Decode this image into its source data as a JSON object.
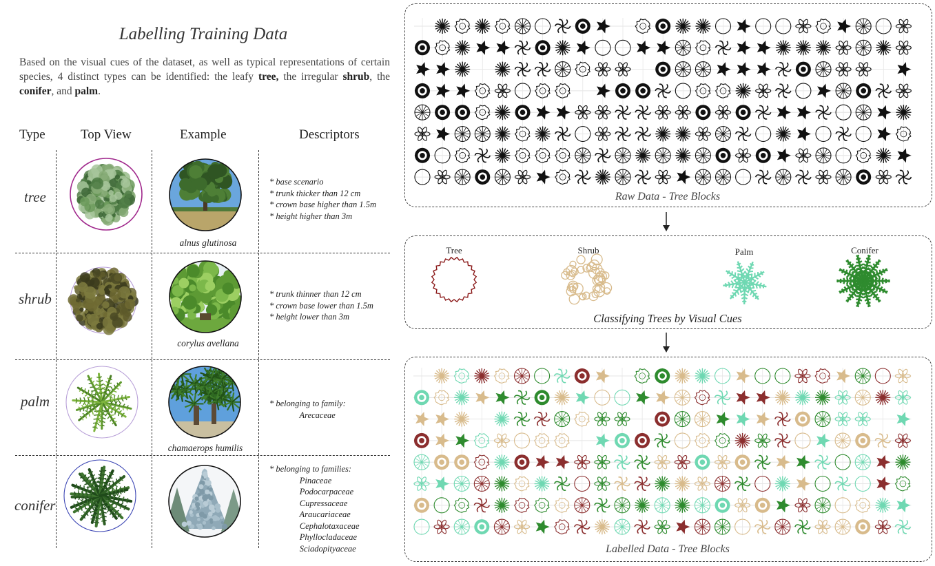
{
  "left": {
    "title": "Labelling Training Data",
    "intro_parts": [
      {
        "text": "Based on the visual cues of the dataset, as well as typical representations of certain species, 4 distinct types can be identified: the leafy ",
        "bold": false
      },
      {
        "text": "tree,",
        "bold": true
      },
      {
        "text": " the irregular ",
        "bold": false
      },
      {
        "text": "shrub",
        "bold": true
      },
      {
        "text": ", the ",
        "bold": false
      },
      {
        "text": "conifer",
        "bold": true
      },
      {
        "text": ", and ",
        "bold": false
      },
      {
        "text": "palm",
        "bold": true
      },
      {
        "text": ".",
        "bold": false
      }
    ],
    "headers": {
      "type": "Type",
      "top_view": "Top View",
      "example": "Example",
      "descriptors": "Descriptors"
    },
    "rows": [
      {
        "type": "tree",
        "species": "alnus glutinosa",
        "descriptors": "* base scenario\n* trunk thicker than 12 cm\n* crown base higher than 1.5m\n* height higher than 3m",
        "ring_color": "#a0288c"
      },
      {
        "type": "shrub",
        "species": "corylus avellana",
        "descriptors": "* trunk thinner than 12 cm\n* crown base lower than 1.5m\n* height lower than 3m",
        "ring_color": "#b8a0d8"
      },
      {
        "type": "palm",
        "species": "chamaerops humilis",
        "descriptors": "* belonging to family:\n              Arecaceae",
        "ring_color": "#b8a0d8"
      },
      {
        "type": "conifer",
        "species": "",
        "descriptors": "* belonging to families:\n              Pinaceae\n              Podocarpaceae\n              Cupressaceae\n              Araucariaceae\n              Cephalotaxaceae\n              Phyllocladaceae\n              Sciadopityaceae",
        "ring_color": "#3c46b4"
      }
    ]
  },
  "right": {
    "raw_caption": "Raw Data - Tree Blocks",
    "classify_caption": "Classifying Trees by Visual Cues",
    "labelled_caption": "Labelled Data - Tree Blocks",
    "classes": [
      {
        "label": "Tree",
        "color": "#8b1a1a"
      },
      {
        "label": "Shrub",
        "color": "#d8bb8c"
      },
      {
        "label": "Palm",
        "color": "#6fd8b2"
      },
      {
        "label": "Conifer",
        "color": "#2e8b2e"
      }
    ],
    "label_colors": [
      "#8b2e2e",
      "#d8bb8c",
      "#6fd8b2",
      "#2e8b2e"
    ]
  }
}
